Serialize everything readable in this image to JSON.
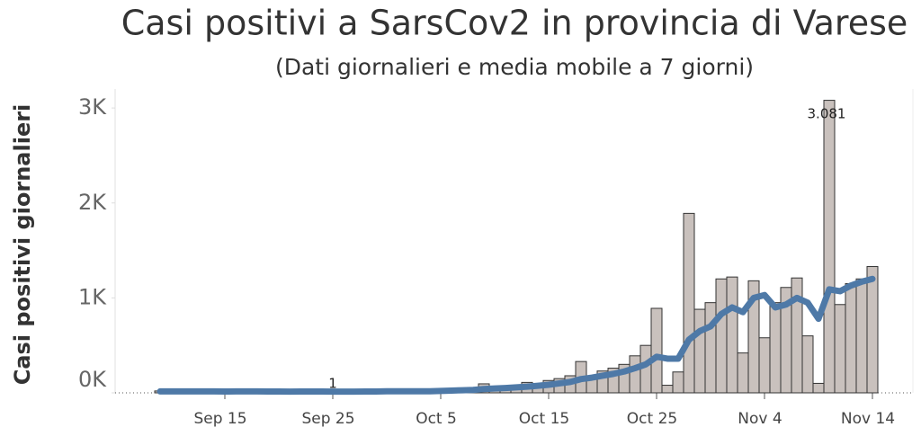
{
  "chart_data": {
    "type": "bar_line",
    "title": "Casi positivi  a SarsCov2 in provincia di Varese",
    "subtitle": "(Dati giornalieri e media mobile  a 7 giorni)",
    "y_label": "Casi positivi giornalieri",
    "categories": [
      null,
      null,
      null,
      null,
      null,
      null,
      "Sep 15",
      null,
      null,
      null,
      null,
      null,
      null,
      null,
      null,
      null,
      "Sep 25",
      null,
      null,
      null,
      null,
      null,
      null,
      null,
      null,
      null,
      "Oct 5",
      null,
      null,
      null,
      null,
      null,
      null,
      null,
      null,
      null,
      "Oct 15",
      null,
      null,
      null,
      null,
      null,
      null,
      null,
      null,
      null,
      "Oct 25",
      null,
      null,
      null,
      null,
      null,
      null,
      null,
      null,
      null,
      "Nov 4",
      null,
      null,
      null,
      null,
      null,
      null,
      null,
      null,
      null,
      "Nov 14"
    ],
    "series": [
      {
        "type": "bar",
        "color": "#c9c1bd",
        "values": [
          20,
          15,
          25,
          10,
          18,
          12,
          22,
          15,
          10,
          20,
          14,
          18,
          8,
          12,
          15,
          20,
          1,
          10,
          18,
          22,
          15,
          25,
          12,
          20,
          18,
          15,
          30,
          35,
          40,
          50,
          95,
          60,
          55,
          70,
          110,
          90,
          130,
          150,
          180,
          330,
          150,
          230,
          260,
          300,
          390,
          500,
          890,
          80,
          220,
          1890,
          880,
          950,
          1200,
          1220,
          420,
          1180,
          580,
          950,
          1110,
          1210,
          600,
          100,
          3081,
          930,
          1150,
          1200,
          1330
        ],
        "value_labels": [
          null,
          null,
          null,
          null,
          null,
          null,
          null,
          null,
          null,
          null,
          null,
          null,
          null,
          null,
          null,
          null,
          "1",
          null,
          null,
          null,
          null,
          null,
          null,
          null,
          null,
          null,
          null,
          null,
          null,
          null,
          null,
          null,
          null,
          null,
          null,
          null,
          null,
          null,
          null,
          null,
          null,
          null,
          null,
          null,
          null,
          null,
          null,
          null,
          null,
          null,
          null,
          null,
          null,
          null,
          null,
          null,
          null,
          null,
          null,
          null,
          null,
          null,
          "3.081",
          null,
          null,
          null,
          null
        ]
      },
      {
        "type": "line",
        "color": "#4e79a7",
        "values": [
          15,
          15,
          15,
          15,
          15,
          15,
          14,
          15,
          15,
          15,
          14,
          14,
          13,
          14,
          14,
          14,
          13,
          13,
          13,
          14,
          14,
          16,
          16,
          17,
          17,
          17,
          20,
          24,
          27,
          31,
          40,
          46,
          51,
          58,
          65,
          75,
          85,
          100,
          115,
          145,
          160,
          180,
          200,
          225,
          260,
          300,
          380,
          360,
          360,
          560,
          650,
          700,
          830,
          900,
          850,
          1000,
          1030,
          900,
          930,
          1000,
          950,
          780,
          1090,
          1070,
          1130,
          1170,
          1200
        ]
      }
    ],
    "ylim": [
      0,
      3200
    ],
    "yticks": [
      {
        "value": 0,
        "label": "0K"
      },
      {
        "value": 1000,
        "label": "1K"
      },
      {
        "value": 2000,
        "label": "2K"
      },
      {
        "value": 3000,
        "label": "3K"
      }
    ]
  }
}
